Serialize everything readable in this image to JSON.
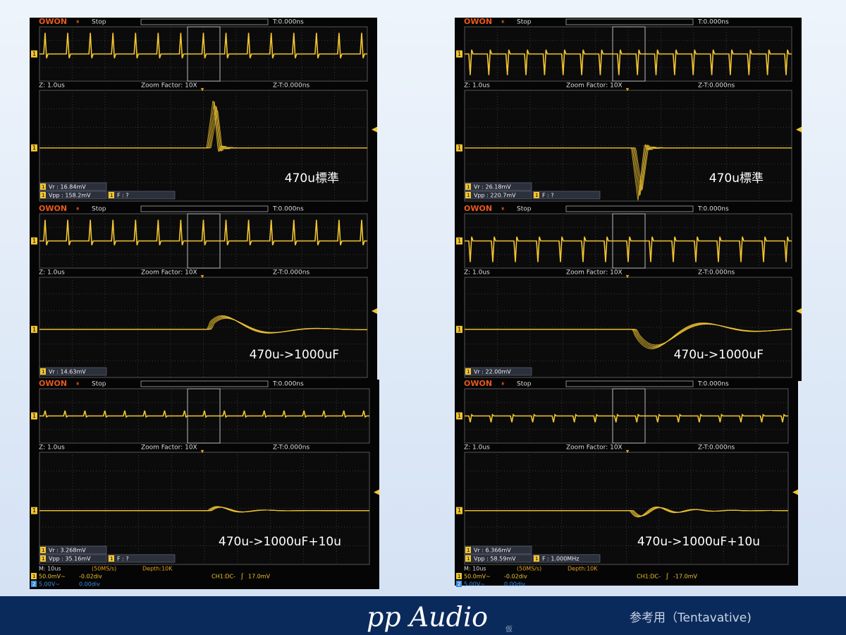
{
  "panels": [
    {
      "header": {
        "brand": "OWON",
        "state": "Stop",
        "time": "T:0.000ns"
      },
      "zoom": {
        "z": "Z: 1.0us",
        "factor": "Zoom Factor: 10X",
        "zt": "Z-T:0.000ns"
      },
      "measurements": [
        "Vr : 16.84mV",
        "Vpp : 158.2mV",
        "F :  ?"
      ],
      "label": "470u標準"
    },
    {
      "header": {
        "brand": "OWON",
        "state": "Stop",
        "time": "T:0.000ns"
      },
      "zoom": {
        "z": "Z: 1.0us",
        "factor": "Zoom Factor: 10X",
        "zt": "Z-T:0.000ns"
      },
      "measurements": [
        "Vr : 26.18mV",
        "Vpp : 220.7mV",
        "F :  ?"
      ],
      "label": "470u標準"
    },
    {
      "header": {
        "brand": "OWON",
        "state": "Stop",
        "time": "T:0.000ns"
      },
      "zoom": {
        "z": "Z: 1.0us",
        "factor": "Zoom Factor: 10X",
        "zt": "Z-T:0.000ns"
      },
      "measurements": [
        "Vr : 14.63mV"
      ],
      "label": "470u->1000uF"
    },
    {
      "header": {
        "brand": "OWON",
        "state": "Stop",
        "time": "T:0.000ns"
      },
      "zoom": {
        "z": "Z: 1.0us",
        "factor": "Zoom Factor: 10X",
        "zt": "Z-T:0.000ns"
      },
      "measurements": [
        "Vr : 22.00mV"
      ],
      "label": "470u->1000uF"
    },
    {
      "header": {
        "brand": "OWON",
        "state": "Stop",
        "time": "T:0.000ns"
      },
      "zoom": {
        "z": "Z: 1.0us",
        "factor": "Zoom Factor: 10X",
        "zt": "Z-T:0.000ns"
      },
      "measurements": [
        "Vr : 3.268mV",
        "Vpp : 35.16mV",
        "F :  ?"
      ],
      "label": "470u->1000uF+10u",
      "status": {
        "timebase": "M: 10us",
        "rate": "(50MS/s)",
        "depth": "Depth:10K",
        "ch1": "50.0mV~",
        "ch1_offset": "-0.02div",
        "trigger": "CH1:DC-",
        "trigger_level": "17.0mV",
        "ch2": "5.00V~",
        "ch2_offset": "0.00div"
      }
    },
    {
      "header": {
        "brand": "OWON",
        "state": "Stop",
        "time": "T:0.000ns"
      },
      "zoom": {
        "z": "Z: 1.0us",
        "factor": "Zoom Factor: 10X",
        "zt": "Z-T:0.000ns"
      },
      "measurements": [
        "Vr : 6.366mV",
        "Vpp : 58.59mV",
        "F : 1.000MHz"
      ],
      "label": "470u->1000uF+10u",
      "status": {
        "timebase": "M: 10us",
        "rate": "(50MS/s)",
        "depth": "Depth:10K",
        "ch1": "50.0mV~",
        "ch1_offset": "-0.02div",
        "trigger": "CH1:DC-",
        "trigger_level": "-17.0mV",
        "ch2": "5.00V~",
        "ch2_offset": "0.00div"
      }
    }
  ],
  "channels": [
    "1",
    "2"
  ],
  "footer": {
    "brand": "pp Audio",
    "mark": "仮",
    "note": "参考用（Tentavative)"
  }
}
